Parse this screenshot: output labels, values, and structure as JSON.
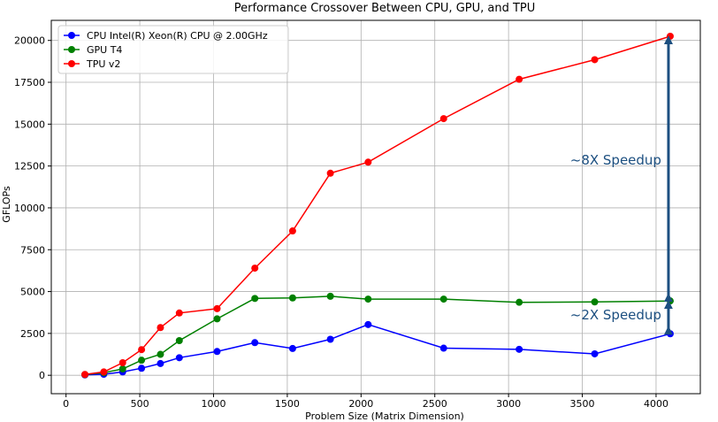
{
  "chart_data": {
    "type": "line",
    "title": "Performance Crossover Between CPU, GPU, and TPU",
    "xlabel": "Problem Size (Matrix Dimension)",
    "ylabel": "GFLOPs",
    "xlim": [
      -100,
      4300
    ],
    "ylim": [
      -1100,
      21200
    ],
    "xticks": [
      0,
      500,
      1000,
      1500,
      2000,
      2500,
      3000,
      3500,
      4000
    ],
    "yticks": [
      0,
      2500,
      5000,
      7500,
      10000,
      12500,
      15000,
      17500,
      20000
    ],
    "grid": true,
    "legend_position": "top-left",
    "x": [
      128,
      256,
      384,
      512,
      640,
      768,
      1024,
      1280,
      1536,
      1792,
      2048,
      2560,
      3072,
      3584,
      4096
    ],
    "series": [
      {
        "name": "CPU Intel(R) Xeon(R) CPU @ 2.00GHz",
        "color": "#0000ff",
        "values": [
          20,
          60,
          200,
          420,
          700,
          1050,
          1420,
          1950,
          1600,
          2150,
          3030,
          1620,
          1550,
          1280,
          2480
        ]
      },
      {
        "name": "GPU T4",
        "color": "#008000",
        "values": [
          40,
          150,
          380,
          900,
          1250,
          2070,
          3370,
          4590,
          4620,
          4720,
          4550,
          4550,
          4360,
          4380,
          4440
        ]
      },
      {
        "name": "TPU v2",
        "color": "#ff0000",
        "values": [
          50,
          200,
          750,
          1530,
          2850,
          3720,
          3980,
          6400,
          8620,
          12070,
          12730,
          15330,
          17680,
          18850,
          20250
        ]
      }
    ],
    "annotations": [
      {
        "text": "~8X Speedup",
        "x_data": 4096,
        "y_from": 4440,
        "y_to": 20250
      },
      {
        "text": "~2X Speedup",
        "x_data": 4096,
        "y_from": 2480,
        "y_to": 4440
      }
    ],
    "annotation_color": "#1c4f80"
  }
}
